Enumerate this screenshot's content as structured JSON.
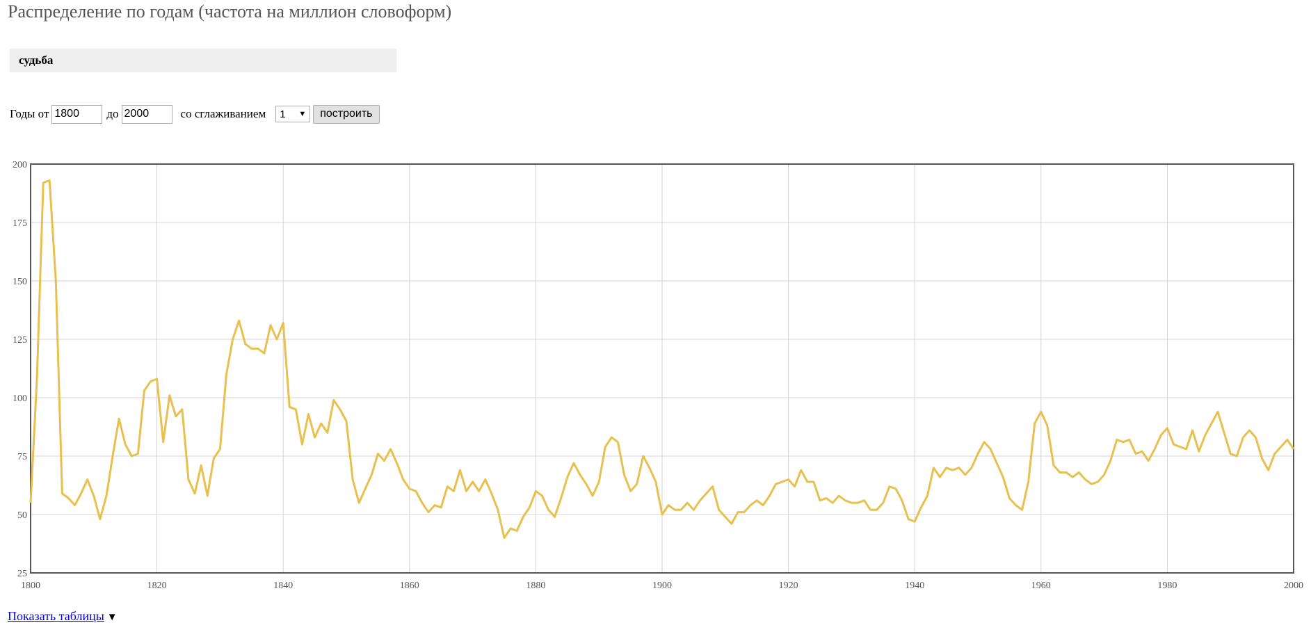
{
  "page": {
    "title": "Распределение по годам (частота на миллион словоформ)",
    "query": "судьба"
  },
  "controls": {
    "years_from_label": "Годы от",
    "year_from": "1800",
    "to_label": "до",
    "year_to": "2000",
    "smoothing_label": "со сглаживанием",
    "smoothing_value": "1",
    "build_label": "построить"
  },
  "footer": {
    "show_tables_label": "Показать таблицы",
    "toggle_icon": "▼"
  },
  "colors": {
    "line": "#e8c04e",
    "grid": "#d3d3d3",
    "frame": "#555555"
  },
  "chart_data": {
    "type": "line",
    "title": "",
    "xlabel": "",
    "ylabel": "",
    "xlim": [
      1800,
      2000
    ],
    "ylim": [
      25,
      200
    ],
    "x_ticks": [
      1800,
      1820,
      1840,
      1860,
      1880,
      1900,
      1920,
      1940,
      1960,
      1980,
      2000
    ],
    "y_ticks": [
      25,
      50,
      75,
      100,
      125,
      150,
      175,
      200
    ],
    "grid": true,
    "legend": "none",
    "series": [
      {
        "x": [
          1800,
          1801,
          1802,
          1803,
          1804,
          1805,
          1806,
          1807,
          1808,
          1809,
          1810,
          1811,
          1812,
          1813,
          1814,
          1815,
          1816,
          1817,
          1818,
          1819,
          1820,
          1821,
          1822,
          1823,
          1824,
          1825,
          1826,
          1827,
          1828,
          1829,
          1830,
          1831,
          1832,
          1833,
          1834,
          1835,
          1836,
          1837,
          1838,
          1839,
          1840,
          1841,
          1842,
          1843,
          1844,
          1845,
          1846,
          1847,
          1848,
          1849,
          1850,
          1851,
          1852,
          1853,
          1854,
          1855,
          1856,
          1857,
          1858,
          1859,
          1860,
          1861,
          1862,
          1863,
          1864,
          1865,
          1866,
          1867,
          1868,
          1869,
          1870,
          1871,
          1872,
          1873,
          1874,
          1875,
          1876,
          1877,
          1878,
          1879,
          1880,
          1881,
          1882,
          1883,
          1884,
          1885,
          1886,
          1887,
          1888,
          1889,
          1890,
          1891,
          1892,
          1893,
          1894,
          1895,
          1896,
          1897,
          1898,
          1899,
          1900,
          1901,
          1902,
          1903,
          1904,
          1905,
          1906,
          1907,
          1908,
          1909,
          1910,
          1911,
          1912,
          1913,
          1914,
          1915,
          1916,
          1917,
          1918,
          1919,
          1920,
          1921,
          1922,
          1923,
          1924,
          1925,
          1926,
          1927,
          1928,
          1929,
          1930,
          1931,
          1932,
          1933,
          1934,
          1935,
          1936,
          1937,
          1938,
          1939,
          1940,
          1941,
          1942,
          1943,
          1944,
          1945,
          1946,
          1947,
          1948,
          1949,
          1950,
          1951,
          1952,
          1953,
          1954,
          1955,
          1956,
          1957,
          1958,
          1959,
          1960,
          1961,
          1962,
          1963,
          1964,
          1965,
          1966,
          1967,
          1968,
          1969,
          1970,
          1971,
          1972,
          1973,
          1974,
          1975,
          1976,
          1977,
          1978,
          1979,
          1980,
          1981,
          1982,
          1983,
          1984,
          1985,
          1986,
          1987,
          1988,
          1989,
          1990,
          1991,
          1992,
          1993,
          1994,
          1995,
          1996,
          1997,
          1998,
          1999,
          2000
        ],
        "y": [
          55,
          108,
          192,
          193,
          150,
          59,
          57,
          54,
          59,
          65,
          58,
          48,
          58,
          75,
          91,
          80,
          75,
          76,
          103,
          107,
          108,
          81,
          101,
          92,
          95,
          65,
          59,
          71,
          58,
          74,
          78,
          110,
          125,
          133,
          123,
          121,
          121,
          119,
          131,
          125,
          132,
          96,
          95,
          80,
          93,
          83,
          89,
          85,
          99,
          95,
          90,
          65,
          55,
          61,
          67,
          76,
          73,
          78,
          72,
          65,
          61,
          60,
          55,
          51,
          54,
          53,
          62,
          60,
          69,
          60,
          64,
          60,
          65,
          59,
          52,
          40,
          44,
          43,
          49,
          53,
          60,
          58,
          52,
          49,
          57,
          66,
          72,
          67,
          63,
          58,
          64,
          79,
          83,
          81,
          67,
          60,
          63,
          75,
          70,
          64,
          50,
          54,
          52,
          52,
          55,
          52,
          56,
          59,
          62,
          52,
          49,
          46,
          51,
          51,
          54,
          56,
          54,
          58,
          63,
          64,
          65,
          62,
          69,
          64,
          64,
          56,
          57,
          55,
          58,
          56,
          55,
          55,
          56,
          52,
          52,
          55,
          62,
          61,
          56,
          48,
          47,
          53,
          58,
          70,
          66,
          70,
          69,
          70,
          67,
          70,
          76,
          81,
          78,
          72,
          66,
          57,
          54,
          52,
          64,
          89,
          94,
          88,
          71,
          68,
          68,
          66,
          68,
          65,
          63,
          64,
          67,
          73,
          82,
          81,
          82,
          76,
          77,
          73,
          78,
          84,
          87,
          80,
          79,
          78,
          86,
          77,
          84,
          89,
          94,
          85,
          76,
          75,
          83,
          86,
          83,
          74,
          69,
          76,
          79,
          82,
          78
        ]
      }
    ]
  }
}
